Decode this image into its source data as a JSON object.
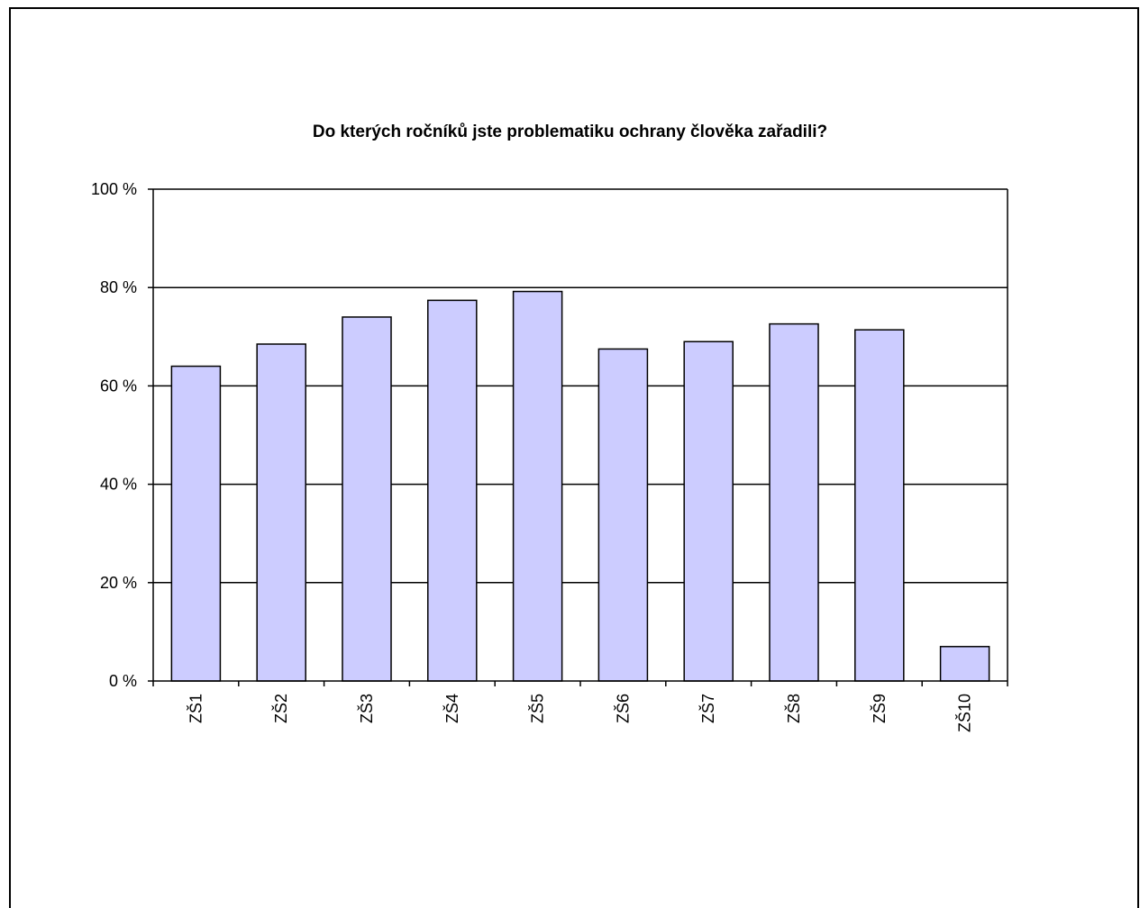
{
  "chart_data": {
    "type": "bar",
    "title": "Do kterých ročníků jste problematiku ochrany člověka zařadili?",
    "categories": [
      "ZŠ1",
      "ZŠ2",
      "ZŠ3",
      "ZŠ4",
      "ZŠ5",
      "ZŠ6",
      "ZŠ7",
      "ZŠ8",
      "ZŠ9",
      "ZŠ10"
    ],
    "values": [
      64,
      68.5,
      74,
      77.4,
      79.2,
      67.5,
      69,
      72.6,
      71.4,
      7
    ],
    "ylim": [
      0,
      100
    ],
    "yticks": [
      0,
      20,
      40,
      60,
      80,
      100
    ],
    "ytick_labels": [
      "0 %",
      "20 %",
      "40 %",
      "60 %",
      "80 %",
      "100 %"
    ],
    "xlabel": "",
    "ylabel": "",
    "grid": true,
    "bar_color": "#ccccff",
    "bar_edge_color": "#000000"
  }
}
